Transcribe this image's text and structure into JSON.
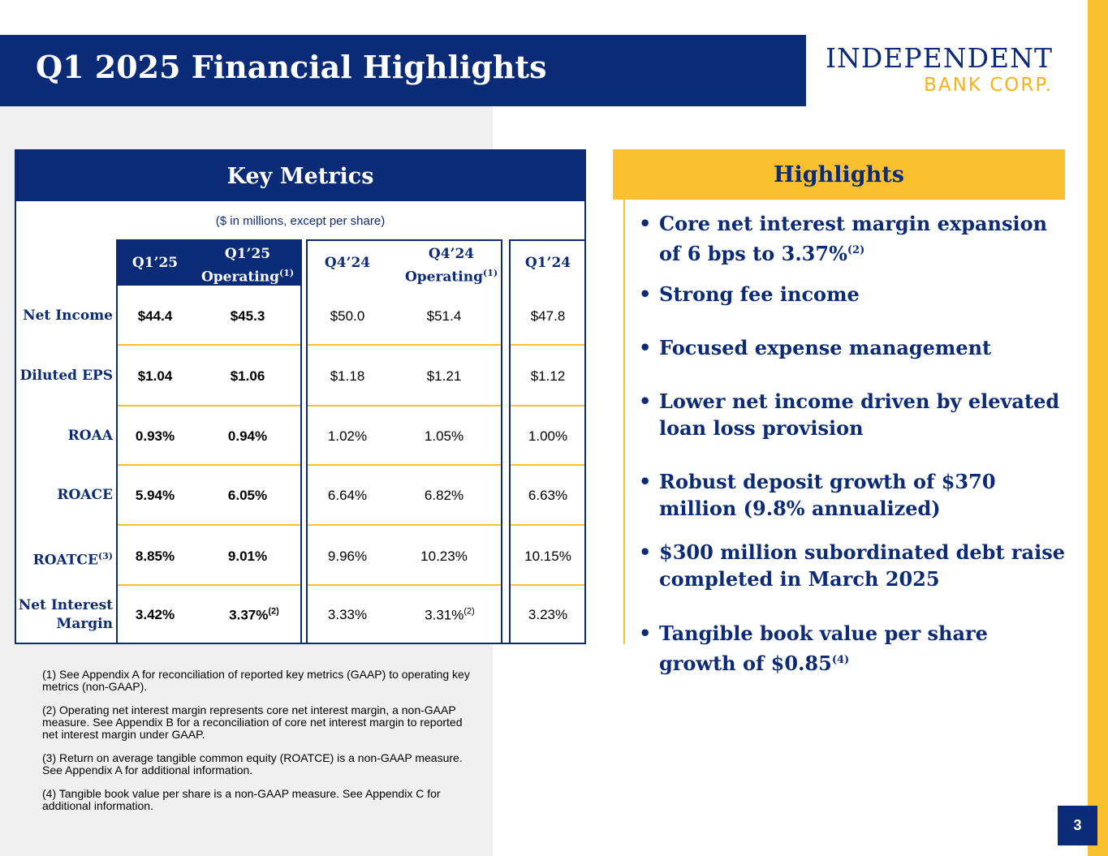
{
  "title": "Q1 2025 Financial Highlights",
  "logo": {
    "line1": "INDEPENDENT",
    "line2": "BANK CORP."
  },
  "key_metrics": {
    "header": "Key Metrics",
    "subnote": "($ in millions, except per share)",
    "columns": [
      {
        "label": "Q1’25",
        "sup": ""
      },
      {
        "label": "Q1’25",
        "label2": "Operating",
        "sup": "(1)"
      },
      {
        "label": "Q4’24",
        "sup": ""
      },
      {
        "label": "Q4’24",
        "label2": "Operating",
        "sup": "(1)"
      },
      {
        "label": "Q1’24",
        "sup": ""
      }
    ],
    "rows": [
      {
        "label": "Net Income",
        "label_sup": "",
        "values": [
          "$44.4",
          "$45.3",
          "$50.0",
          "$51.4",
          "$47.8"
        ]
      },
      {
        "label": "Diluted EPS",
        "label_sup": "",
        "values": [
          "$1.04",
          "$1.06",
          "$1.18",
          "$1.21",
          "$1.12"
        ]
      },
      {
        "label": "ROAA",
        "label_sup": "",
        "values": [
          "0.93%",
          "0.94%",
          "1.02%",
          "1.05%",
          "1.00%"
        ]
      },
      {
        "label": "ROACE",
        "label_sup": "",
        "values": [
          "5.94%",
          "6.05%",
          "6.64%",
          "6.82%",
          "6.63%"
        ]
      },
      {
        "label": "ROATCE",
        "label_sup": "(3)",
        "values": [
          "8.85%",
          "9.01%",
          "9.96%",
          "10.23%",
          "10.15%"
        ]
      },
      {
        "label": "Net Interest",
        "label2": "Margin",
        "label_sup": "",
        "values": [
          "3.42%",
          "3.37%",
          "3.33%",
          "3.31%",
          "3.23%"
        ],
        "value_sups": [
          "",
          "(2)",
          "",
          "(2)",
          ""
        ]
      }
    ]
  },
  "footnotes": [
    "(1) See Appendix A for reconciliation of reported key metrics (GAAP) to operating key metrics (non-GAAP).",
    "(2) Operating net interest margin represents core net interest margin, a non-GAAP measure.  See Appendix B for a reconciliation of core net interest margin to reported net interest margin under GAAP.",
    "(3) Return on average tangible common equity (ROATCE) is a non-GAAP measure.  See Appendix A for additional information.",
    "(4) Tangible book value per share is a non-GAAP measure. See Appendix C for additional information."
  ],
  "highlights": {
    "header": "Highlights",
    "bullet_char": "•",
    "items": [
      {
        "text": "Core net interest margin expansion of 6 bps to 3.37%",
        "sup": "(2)"
      },
      {
        "text": "Strong fee income",
        "sup": ""
      },
      {
        "text": "Focused expense management",
        "sup": ""
      },
      {
        "text": "Lower net income driven by elevated loan loss provision",
        "sup": ""
      },
      {
        "text": "Robust deposit growth of $370 million (9.8% annualized)",
        "sup": ""
      },
      {
        "text": "$300 million subordinated debt raise completed in March 2025",
        "sup": ""
      },
      {
        "text": "Tangible book value per share growth of $0.85",
        "sup": "(4)"
      }
    ]
  },
  "page_number": "3",
  "colors": {
    "navy": "#0c2b77",
    "gold": "#fbc02d",
    "panel_bg": "#f0f0f0"
  }
}
